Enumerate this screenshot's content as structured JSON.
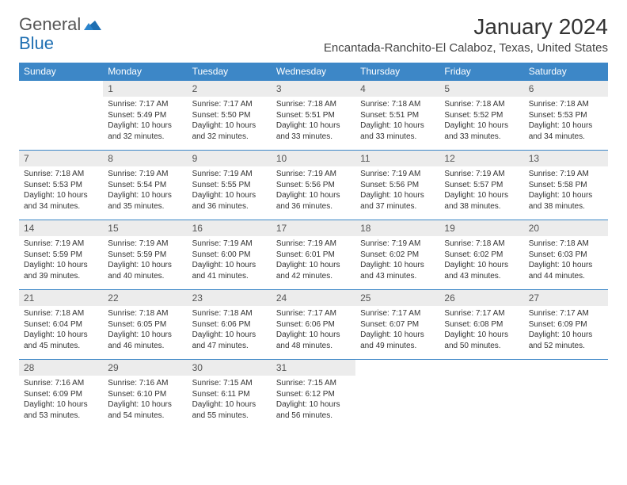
{
  "logo": {
    "text1": "General",
    "text2": "Blue"
  },
  "title": "January 2024",
  "location": "Encantada-Ranchito-El Calaboz, Texas, United States",
  "colors": {
    "header_bg": "#3d87c7",
    "header_fg": "#ffffff",
    "daynum_bg": "#ececec",
    "border": "#3d87c7",
    "logo_blue": "#1f6fb2"
  },
  "weekdays": [
    "Sunday",
    "Monday",
    "Tuesday",
    "Wednesday",
    "Thursday",
    "Friday",
    "Saturday"
  ],
  "weeks": [
    [
      {
        "n": "",
        "sr": "",
        "ss": "",
        "dl": "",
        "empty": true
      },
      {
        "n": "1",
        "sr": "7:17 AM",
        "ss": "5:49 PM",
        "dl": "10 hours and 32 minutes."
      },
      {
        "n": "2",
        "sr": "7:17 AM",
        "ss": "5:50 PM",
        "dl": "10 hours and 32 minutes."
      },
      {
        "n": "3",
        "sr": "7:18 AM",
        "ss": "5:51 PM",
        "dl": "10 hours and 33 minutes."
      },
      {
        "n": "4",
        "sr": "7:18 AM",
        "ss": "5:51 PM",
        "dl": "10 hours and 33 minutes."
      },
      {
        "n": "5",
        "sr": "7:18 AM",
        "ss": "5:52 PM",
        "dl": "10 hours and 33 minutes."
      },
      {
        "n": "6",
        "sr": "7:18 AM",
        "ss": "5:53 PM",
        "dl": "10 hours and 34 minutes."
      }
    ],
    [
      {
        "n": "7",
        "sr": "7:18 AM",
        "ss": "5:53 PM",
        "dl": "10 hours and 34 minutes."
      },
      {
        "n": "8",
        "sr": "7:19 AM",
        "ss": "5:54 PM",
        "dl": "10 hours and 35 minutes."
      },
      {
        "n": "9",
        "sr": "7:19 AM",
        "ss": "5:55 PM",
        "dl": "10 hours and 36 minutes."
      },
      {
        "n": "10",
        "sr": "7:19 AM",
        "ss": "5:56 PM",
        "dl": "10 hours and 36 minutes."
      },
      {
        "n": "11",
        "sr": "7:19 AM",
        "ss": "5:56 PM",
        "dl": "10 hours and 37 minutes."
      },
      {
        "n": "12",
        "sr": "7:19 AM",
        "ss": "5:57 PM",
        "dl": "10 hours and 38 minutes."
      },
      {
        "n": "13",
        "sr": "7:19 AM",
        "ss": "5:58 PM",
        "dl": "10 hours and 38 minutes."
      }
    ],
    [
      {
        "n": "14",
        "sr": "7:19 AM",
        "ss": "5:59 PM",
        "dl": "10 hours and 39 minutes."
      },
      {
        "n": "15",
        "sr": "7:19 AM",
        "ss": "5:59 PM",
        "dl": "10 hours and 40 minutes."
      },
      {
        "n": "16",
        "sr": "7:19 AM",
        "ss": "6:00 PM",
        "dl": "10 hours and 41 minutes."
      },
      {
        "n": "17",
        "sr": "7:19 AM",
        "ss": "6:01 PM",
        "dl": "10 hours and 42 minutes."
      },
      {
        "n": "18",
        "sr": "7:19 AM",
        "ss": "6:02 PM",
        "dl": "10 hours and 43 minutes."
      },
      {
        "n": "19",
        "sr": "7:18 AM",
        "ss": "6:02 PM",
        "dl": "10 hours and 43 minutes."
      },
      {
        "n": "20",
        "sr": "7:18 AM",
        "ss": "6:03 PM",
        "dl": "10 hours and 44 minutes."
      }
    ],
    [
      {
        "n": "21",
        "sr": "7:18 AM",
        "ss": "6:04 PM",
        "dl": "10 hours and 45 minutes."
      },
      {
        "n": "22",
        "sr": "7:18 AM",
        "ss": "6:05 PM",
        "dl": "10 hours and 46 minutes."
      },
      {
        "n": "23",
        "sr": "7:18 AM",
        "ss": "6:06 PM",
        "dl": "10 hours and 47 minutes."
      },
      {
        "n": "24",
        "sr": "7:17 AM",
        "ss": "6:06 PM",
        "dl": "10 hours and 48 minutes."
      },
      {
        "n": "25",
        "sr": "7:17 AM",
        "ss": "6:07 PM",
        "dl": "10 hours and 49 minutes."
      },
      {
        "n": "26",
        "sr": "7:17 AM",
        "ss": "6:08 PM",
        "dl": "10 hours and 50 minutes."
      },
      {
        "n": "27",
        "sr": "7:17 AM",
        "ss": "6:09 PM",
        "dl": "10 hours and 52 minutes."
      }
    ],
    [
      {
        "n": "28",
        "sr": "7:16 AM",
        "ss": "6:09 PM",
        "dl": "10 hours and 53 minutes."
      },
      {
        "n": "29",
        "sr": "7:16 AM",
        "ss": "6:10 PM",
        "dl": "10 hours and 54 minutes."
      },
      {
        "n": "30",
        "sr": "7:15 AM",
        "ss": "6:11 PM",
        "dl": "10 hours and 55 minutes."
      },
      {
        "n": "31",
        "sr": "7:15 AM",
        "ss": "6:12 PM",
        "dl": "10 hours and 56 minutes."
      },
      {
        "n": "",
        "sr": "",
        "ss": "",
        "dl": "",
        "empty": true
      },
      {
        "n": "",
        "sr": "",
        "ss": "",
        "dl": "",
        "empty": true
      },
      {
        "n": "",
        "sr": "",
        "ss": "",
        "dl": "",
        "empty": true
      }
    ]
  ],
  "labels": {
    "sunrise": "Sunrise:",
    "sunset": "Sunset:",
    "daylight": "Daylight:"
  }
}
